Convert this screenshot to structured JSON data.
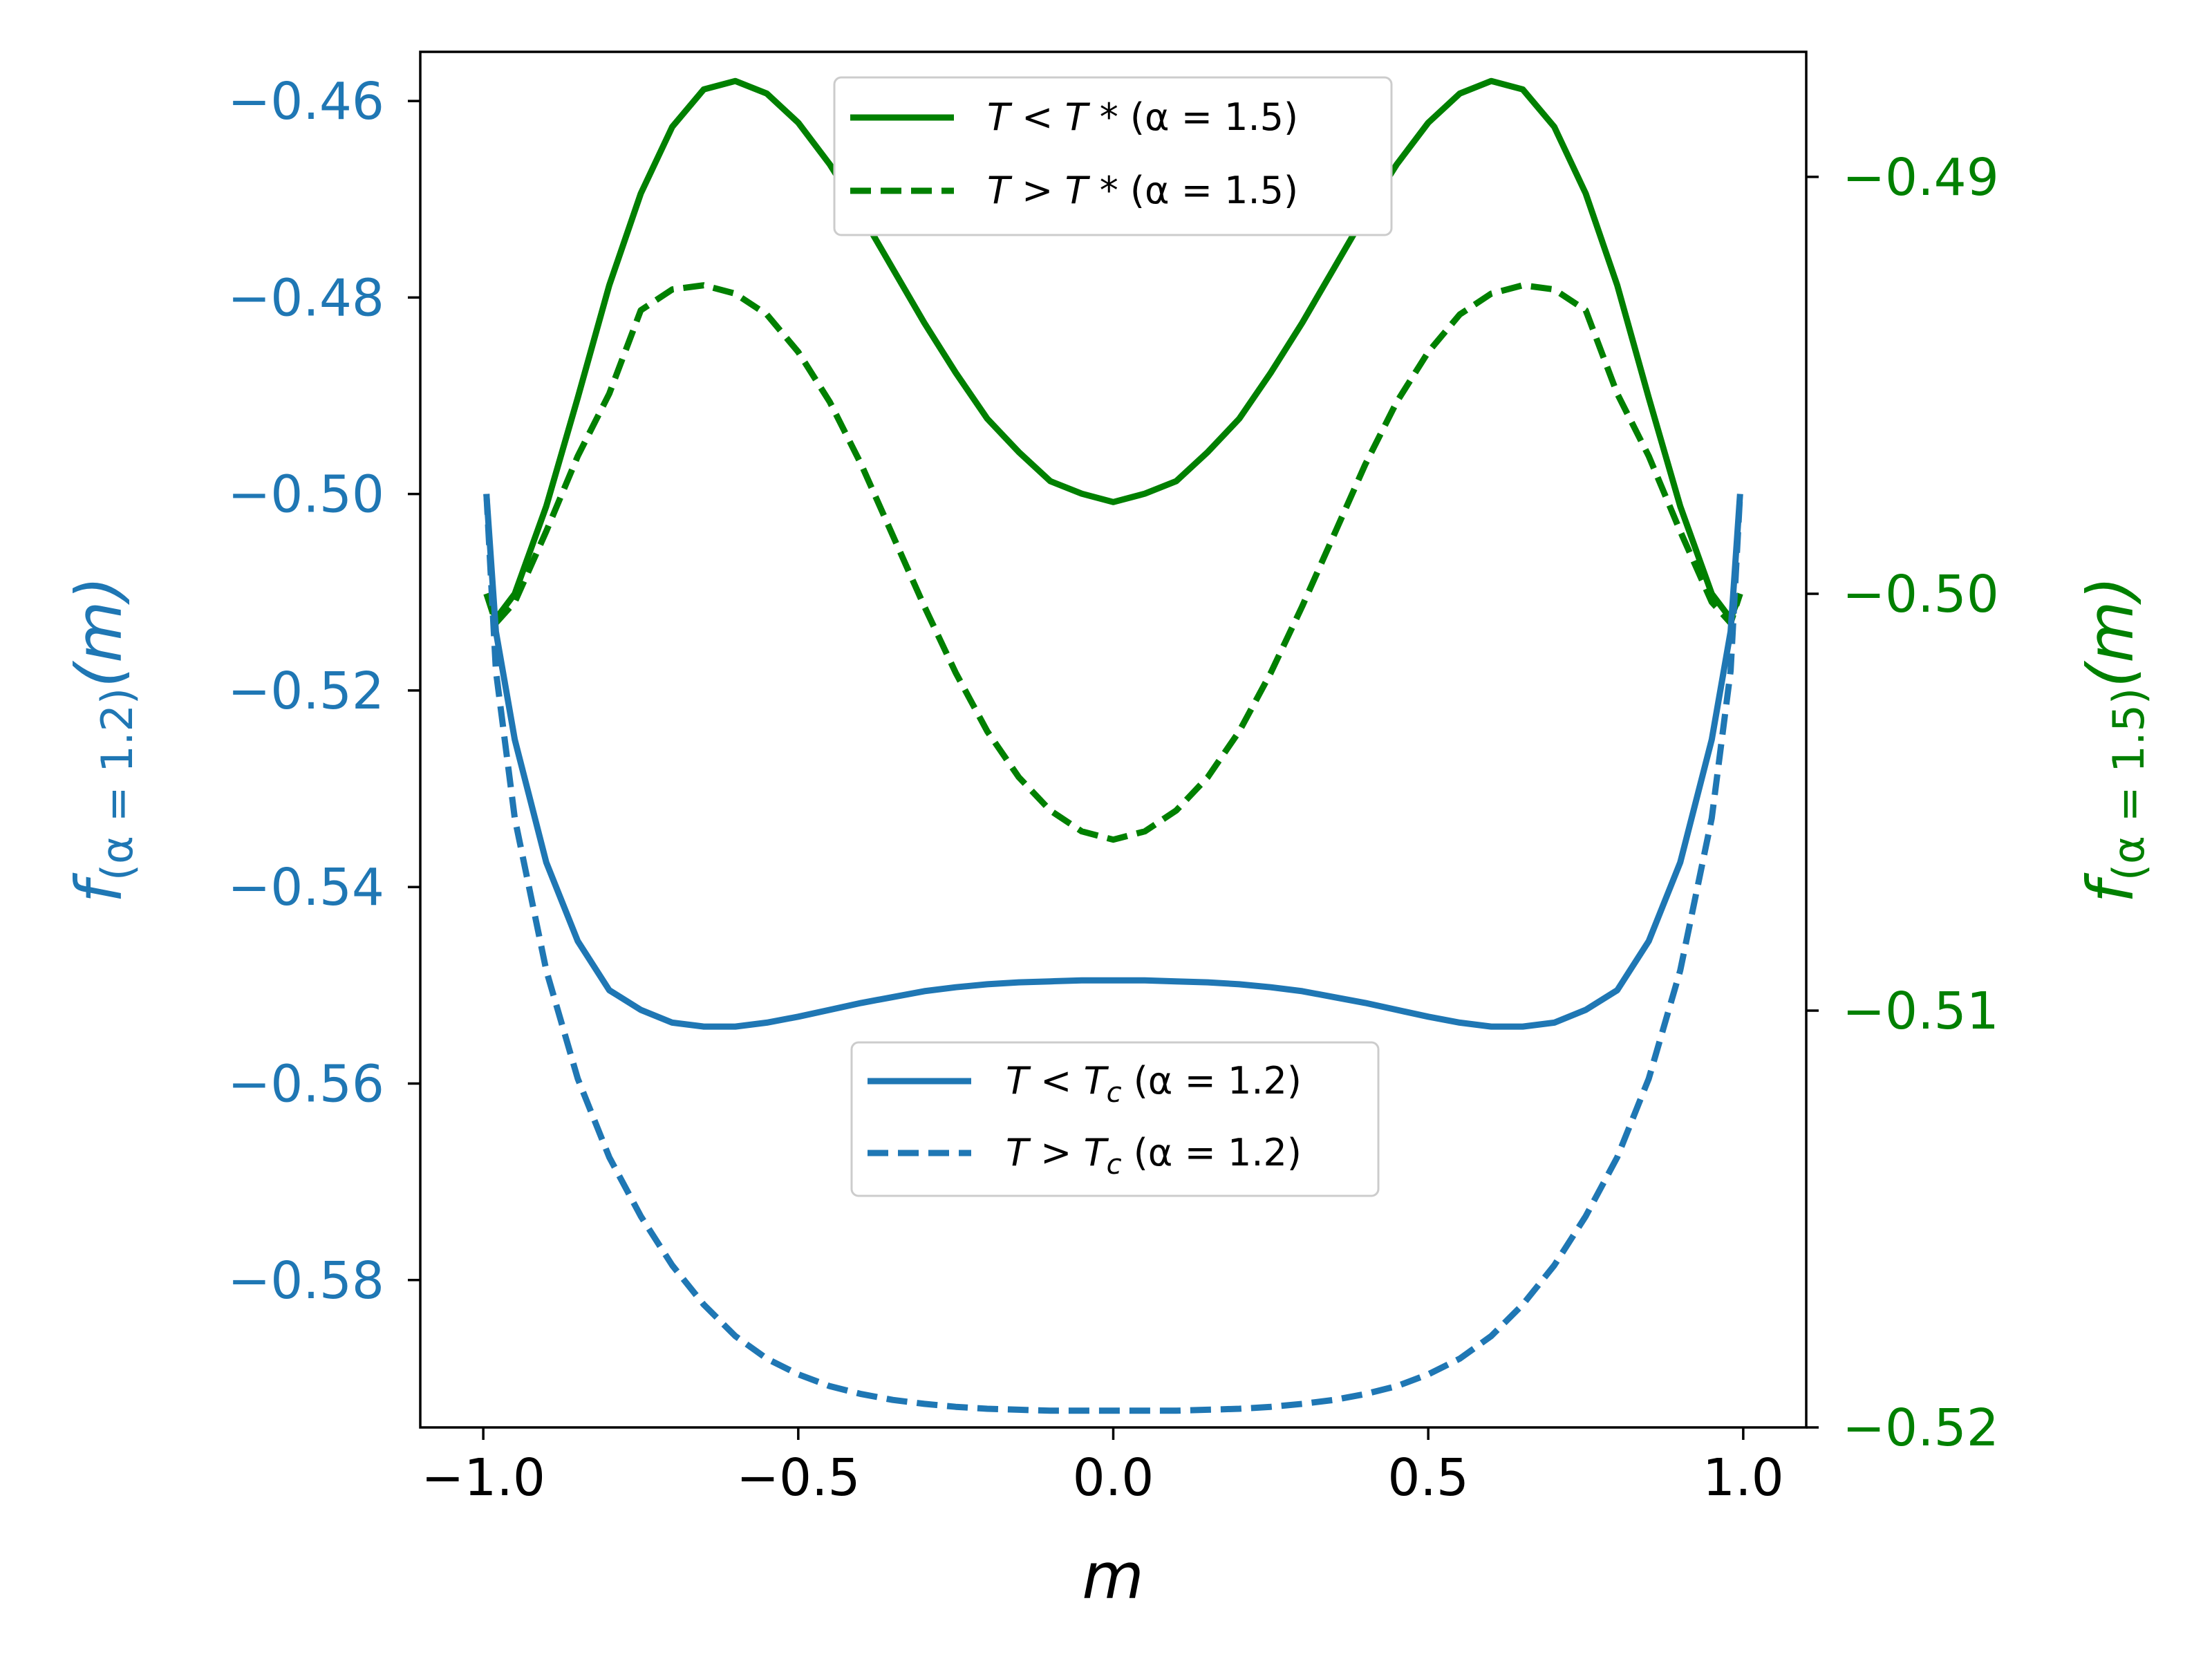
{
  "chart_data": {
    "type": "line",
    "xlabel": "m",
    "xlim": [
      -1.1,
      1.1
    ],
    "xticks": [
      -1.0,
      -0.5,
      0.0,
      0.5,
      1.0
    ],
    "xtick_labels": [
      "−1.0",
      "−0.5",
      "0.0",
      "0.5",
      "1.0"
    ],
    "left_axis": {
      "label_main": "f",
      "label_sub": "(α = 1.2)",
      "label_tail": "(m)",
      "color": "#1f77b4",
      "ylim": [
        -0.595,
        -0.455
      ],
      "ticks": [
        -0.46,
        -0.48,
        -0.5,
        -0.52,
        -0.54,
        -0.56,
        -0.58
      ],
      "tick_labels": [
        "−0.46",
        "−0.48",
        "−0.50",
        "−0.52",
        "−0.54",
        "−0.56",
        "−0.58"
      ]
    },
    "right_axis": {
      "label_main": "f",
      "label_sub": "(α = 1.5)",
      "label_tail": "(m)",
      "color": "#008000",
      "ylim": [
        -0.52,
        -0.487
      ],
      "ticks": [
        -0.49,
        -0.5,
        -0.51,
        -0.52
      ],
      "tick_labels": [
        "−0.49",
        "−0.50",
        "−0.51",
        "−0.52"
      ]
    },
    "series": [
      {
        "name": "T < T * (α = 1.5)",
        "axis": "right",
        "style": "solid",
        "color": "#008000",
        "x": [
          -0.995,
          -0.98,
          -0.95,
          -0.9,
          -0.85,
          -0.8,
          -0.75,
          -0.7,
          -0.65,
          -0.6,
          -0.55,
          -0.5,
          -0.45,
          -0.4,
          -0.35,
          -0.3,
          -0.25,
          -0.2,
          -0.15,
          -0.1,
          -0.05,
          0.0,
          0.05,
          0.1,
          0.15,
          0.2,
          0.25,
          0.3,
          0.35,
          0.4,
          0.45,
          0.5,
          0.55,
          0.6,
          0.65,
          0.7,
          0.75,
          0.8,
          0.85,
          0.9,
          0.95,
          0.98,
          0.995
        ],
        "y": [
          -0.5,
          -0.5006,
          -0.5,
          -0.4979,
          -0.4953,
          -0.4926,
          -0.4904,
          -0.4888,
          -0.4879,
          -0.4877,
          -0.488,
          -0.4887,
          -0.4897,
          -0.4909,
          -0.4922,
          -0.4935,
          -0.4947,
          -0.4958,
          -0.4966,
          -0.4973,
          -0.4976,
          -0.4978,
          -0.4976,
          -0.4973,
          -0.4966,
          -0.4958,
          -0.4947,
          -0.4935,
          -0.4922,
          -0.4909,
          -0.4897,
          -0.4887,
          -0.488,
          -0.4877,
          -0.4879,
          -0.4888,
          -0.4904,
          -0.4926,
          -0.4953,
          -0.4979,
          -0.5,
          -0.5006,
          -0.5
        ]
      },
      {
        "name": "T > T * (α = 1.5)",
        "axis": "right",
        "style": "dashed",
        "color": "#008000",
        "x": [
          -0.995,
          -0.98,
          -0.95,
          -0.9,
          -0.85,
          -0.8,
          -0.75,
          -0.7,
          -0.65,
          -0.6,
          -0.55,
          -0.5,
          -0.45,
          -0.4,
          -0.35,
          -0.3,
          -0.25,
          -0.2,
          -0.15,
          -0.1,
          -0.05,
          0.0,
          0.05,
          0.1,
          0.15,
          0.2,
          0.25,
          0.3,
          0.35,
          0.4,
          0.45,
          0.5,
          0.55,
          0.6,
          0.65,
          0.7,
          0.75,
          0.8,
          0.85,
          0.9,
          0.95,
          0.98,
          0.995
        ],
        "y": [
          -0.5,
          -0.5007,
          -0.5002,
          -0.4985,
          -0.4967,
          -0.4952,
          -0.4932,
          -0.4927,
          -0.4926,
          -0.4928,
          -0.4933,
          -0.4942,
          -0.4954,
          -0.4969,
          -0.4986,
          -0.5003,
          -0.5019,
          -0.5033,
          -0.5044,
          -0.5052,
          -0.5057,
          -0.5059,
          -0.5057,
          -0.5052,
          -0.5044,
          -0.5033,
          -0.5019,
          -0.5003,
          -0.4986,
          -0.4969,
          -0.4954,
          -0.4942,
          -0.4933,
          -0.4928,
          -0.4926,
          -0.4927,
          -0.4932,
          -0.4952,
          -0.4967,
          -0.4985,
          -0.5002,
          -0.5007,
          -0.5
        ]
      },
      {
        "name": "T < T_c (α = 1.2)",
        "axis": "left",
        "style": "solid",
        "color": "#1f77b4",
        "x": [
          -0.995,
          -0.98,
          -0.95,
          -0.9,
          -0.85,
          -0.8,
          -0.75,
          -0.7,
          -0.65,
          -0.6,
          -0.55,
          -0.5,
          -0.45,
          -0.4,
          -0.35,
          -0.3,
          -0.25,
          -0.2,
          -0.15,
          -0.1,
          -0.05,
          0.0,
          0.05,
          0.1,
          0.15,
          0.2,
          0.25,
          0.3,
          0.35,
          0.4,
          0.45,
          0.5,
          0.55,
          0.6,
          0.65,
          0.7,
          0.75,
          0.8,
          0.85,
          0.9,
          0.95,
          0.98,
          0.995
        ],
        "y": [
          -0.5,
          -0.514,
          -0.525,
          -0.5375,
          -0.5455,
          -0.5505,
          -0.5525,
          -0.5538,
          -0.5542,
          -0.5542,
          -0.5538,
          -0.5532,
          -0.5525,
          -0.5518,
          -0.5512,
          -0.5506,
          -0.5502,
          -0.5499,
          -0.5497,
          -0.5496,
          -0.5495,
          -0.5495,
          -0.5495,
          -0.5496,
          -0.5497,
          -0.5499,
          -0.5502,
          -0.5506,
          -0.5512,
          -0.5518,
          -0.5525,
          -0.5532,
          -0.5538,
          -0.5542,
          -0.5542,
          -0.5538,
          -0.5525,
          -0.5505,
          -0.5455,
          -0.5375,
          -0.525,
          -0.514,
          -0.5
        ]
      },
      {
        "name": "T > T_c (α = 1.2)",
        "axis": "left",
        "style": "dashed",
        "color": "#1f77b4",
        "x": [
          -0.995,
          -0.98,
          -0.95,
          -0.9,
          -0.85,
          -0.8,
          -0.75,
          -0.7,
          -0.65,
          -0.6,
          -0.55,
          -0.5,
          -0.45,
          -0.4,
          -0.35,
          -0.3,
          -0.25,
          -0.2,
          -0.15,
          -0.1,
          -0.05,
          0.0,
          0.05,
          0.1,
          0.15,
          0.2,
          0.25,
          0.3,
          0.35,
          0.4,
          0.45,
          0.5,
          0.55,
          0.6,
          0.65,
          0.7,
          0.75,
          0.8,
          0.85,
          0.9,
          0.95,
          0.98,
          0.995
        ],
        "y": [
          -0.5,
          -0.518,
          -0.533,
          -0.5485,
          -0.5595,
          -0.5675,
          -0.5735,
          -0.5785,
          -0.5825,
          -0.5857,
          -0.588,
          -0.5896,
          -0.5908,
          -0.5916,
          -0.5922,
          -0.5926,
          -0.5929,
          -0.5931,
          -0.5932,
          -0.5933,
          -0.5933,
          -0.5933,
          -0.5933,
          -0.5933,
          -0.5932,
          -0.5931,
          -0.5929,
          -0.5926,
          -0.5922,
          -0.5916,
          -0.5908,
          -0.5896,
          -0.588,
          -0.5857,
          -0.5825,
          -0.5785,
          -0.5735,
          -0.5675,
          -0.5595,
          -0.5485,
          -0.533,
          -0.518,
          -0.5
        ]
      }
    ],
    "legends": [
      {
        "placement": "top-center",
        "entries": [
          {
            "series": 0,
            "label_a": "T",
            "label_op": " < ",
            "label_b": "T *",
            "label_c": "  (α = 1.5)"
          },
          {
            "series": 1,
            "label_a": "T",
            "label_op": " > ",
            "label_b": "T *",
            "label_c": "  (α = 1.5)"
          }
        ]
      },
      {
        "placement": "lower-center",
        "entries": [
          {
            "series": 2,
            "label_a": "T",
            "label_op": " < ",
            "label_b": "T",
            "label_bsub": "c",
            "label_c": " (α = 1.2)"
          },
          {
            "series": 3,
            "label_a": "T",
            "label_op": " > ",
            "label_b": "T",
            "label_bsub": "c",
            "label_c": " (α = 1.2)"
          }
        ]
      }
    ],
    "grid": false
  }
}
